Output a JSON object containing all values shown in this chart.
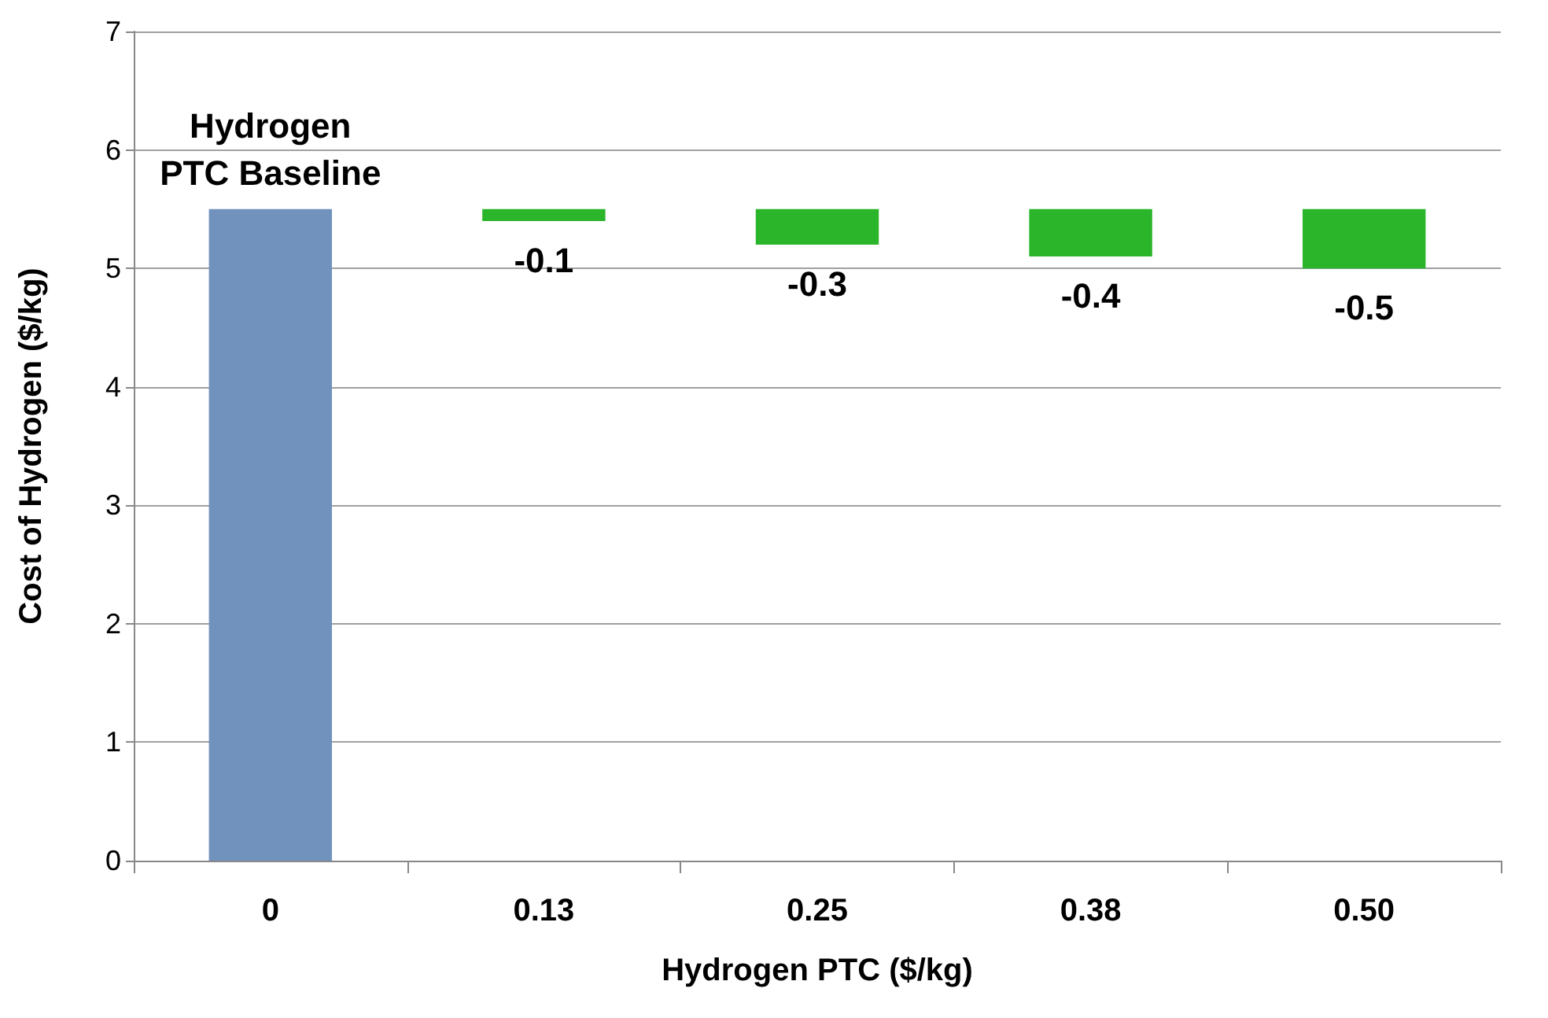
{
  "chart_data": {
    "type": "bar",
    "xlabel": "Hydrogen PTC ($/kg)",
    "ylabel": "Cost of Hydrogen ($/kg)",
    "categories": [
      "0",
      "0.13",
      "0.25",
      "0.38",
      "0.50"
    ],
    "values": [
      5.5,
      -0.1,
      -0.3,
      -0.4,
      -0.5
    ],
    "base": [
      0,
      5.5,
      5.5,
      5.5,
      5.5
    ],
    "colors": [
      "#7192bd",
      "#2bb52b",
      "#2bb52b",
      "#2bb52b",
      "#2bb52b"
    ],
    "value_labels": [
      null,
      "-0.1",
      "-0.3",
      "-0.4",
      "-0.5"
    ],
    "annotations": [
      {
        "text": "Hydrogen\nPTC Baseline",
        "x": "0",
        "y": 5.5
      }
    ],
    "ylim": [
      0,
      7
    ],
    "yticks": [
      0,
      1,
      2,
      3,
      4,
      5,
      6,
      7
    ],
    "grid": "y"
  }
}
